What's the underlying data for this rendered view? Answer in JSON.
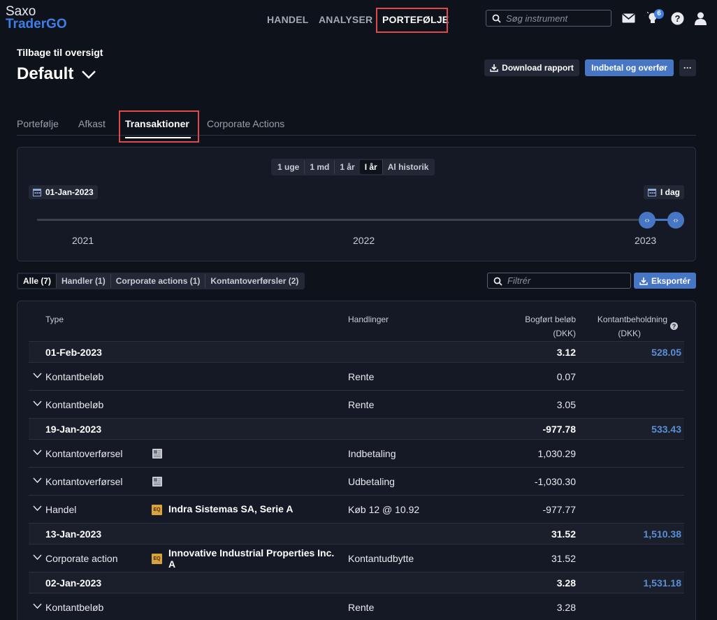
{
  "app": {
    "logo_top": "Saxo",
    "logo_bottom": "TraderGO"
  },
  "nav": {
    "items": [
      "HANDEL",
      "ANALYSER",
      "PORTEFØLJE"
    ],
    "active": "PORTEFØLJE"
  },
  "search": {
    "placeholder": "Søg instrument"
  },
  "notifications": {
    "count": "6"
  },
  "header": {
    "back_label": "Tilbage til oversigt",
    "title": "Default",
    "download_label": "Download rapport",
    "deposit_label": "Indbetal og overfør",
    "more_label": "···"
  },
  "tabs": [
    "Portefølje",
    "Afkast",
    "Transaktioner",
    "Corporate Actions"
  ],
  "period": {
    "options": [
      "1 uge",
      "1 md",
      "1 år",
      "I år",
      "Al historik"
    ],
    "active": "I år",
    "from_date": "01-Jan-2023",
    "to_date": "I dag",
    "years": [
      "2021",
      "2022",
      "2023"
    ]
  },
  "filters": {
    "chips": [
      "Alle (7)",
      "Handler (1)",
      "Corporate actions (1)",
      "Kontantoverførsler (2)"
    ],
    "active": "Alle (7)",
    "filter_placeholder": "Filtrér",
    "export_label": "Eksportér"
  },
  "table": {
    "headers": {
      "type": "Type",
      "actions": "Handlinger",
      "booked": "Bogført beløb",
      "booked_unit": "(DKK)",
      "cash": "Kontantbeholdning",
      "cash_unit": "(DKK)"
    },
    "rows": [
      {
        "kind": "date",
        "date": "01-Feb-2023",
        "amount": "3.12",
        "balance": "528.05"
      },
      {
        "kind": "tx",
        "type": "Kontantbeløb",
        "action": "Rente",
        "amount": "0.07"
      },
      {
        "kind": "tx",
        "type": "Kontantbeløb",
        "action": "Rente",
        "amount": "3.05"
      },
      {
        "kind": "date",
        "date": "19-Jan-2023",
        "amount": "-977.78",
        "balance": "533.43"
      },
      {
        "kind": "tx",
        "type": "Kontantoverførsel",
        "action": "Indbetaling",
        "amount": "1,030.29",
        "doc": true
      },
      {
        "kind": "tx",
        "type": "Kontantoverførsel",
        "action": "Udbetaling",
        "amount": "-1,030.30",
        "doc": true
      },
      {
        "kind": "tx",
        "type": "Handel",
        "instrument": "Indra Sistemas SA, Serie A",
        "badge": "EQ",
        "action": "Køb 12 @ 10.92",
        "amount": "-977.77"
      },
      {
        "kind": "date",
        "date": "13-Jan-2023",
        "amount": "31.52",
        "balance": "1,510.38"
      },
      {
        "kind": "tx",
        "type": "Corporate action",
        "instrument": "Innovative Industrial Properties Inc. A",
        "badge": "EQ",
        "action": "Kontantudbytte",
        "amount": "31.52"
      },
      {
        "kind": "date",
        "date": "02-Jan-2023",
        "amount": "3.28",
        "balance": "1,531.18"
      },
      {
        "kind": "tx",
        "type": "Kontantbeløb",
        "action": "Rente",
        "amount": "3.28"
      }
    ]
  },
  "colors": {
    "accent": "#3d7fe6",
    "button_blue": "#4676c4",
    "highlight_box": "#e04a4a",
    "balance_text": "#5a8fd8"
  }
}
